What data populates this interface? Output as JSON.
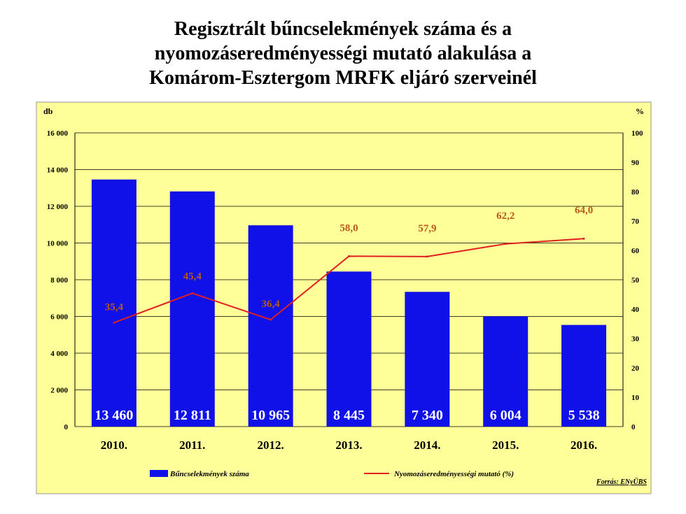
{
  "title_lines": [
    "Regisztrált bűncselekmények száma és a",
    "nyomozáseredményességi mutató alakulása a",
    "Komárom-Esztergom MRFK eljáró szerveinél"
  ],
  "source": "Forrás: ENyÜBS",
  "colors": {
    "plot_bg": "#ffff99",
    "bar": "#1010e8",
    "line": "#e02020",
    "line_label": "#b85a1a",
    "bar_label": "#ffffff",
    "grid": "#000000"
  },
  "chart_data": {
    "type": "bar+line",
    "categories": [
      "2010.",
      "2011.",
      "2012.",
      "2013.",
      "2014.",
      "2015.",
      "2016."
    ],
    "series": [
      {
        "name": "Bűncselekmények száma",
        "type": "bar",
        "axis": "left",
        "values": [
          13460,
          12811,
          10965,
          8445,
          7340,
          6004,
          5538
        ],
        "labels": [
          "13 460",
          "12 811",
          "10 965",
          "8 445",
          "7 340",
          "6 004",
          "5 538"
        ]
      },
      {
        "name": "Nyomozáseredményességi mutató (%)",
        "type": "line",
        "axis": "right",
        "values": [
          35.4,
          45.4,
          36.4,
          58.0,
          57.9,
          62.2,
          64.0
        ],
        "labels": [
          "35,4",
          "45,4",
          "36,4",
          "58,0",
          "57,9",
          "62,2",
          "64,0"
        ]
      }
    ],
    "y_left": {
      "unit": "db",
      "min": 0,
      "max": 16000,
      "ticks": [
        0,
        2000,
        4000,
        6000,
        8000,
        10000,
        12000,
        14000,
        16000
      ],
      "tick_labels": [
        "0",
        "2 000",
        "4 000",
        "6 000",
        "8 000",
        "10 000",
        "12 000",
        "14 000",
        "16 000"
      ]
    },
    "y_right": {
      "unit": "%",
      "min": 0,
      "max": 100,
      "ticks": [
        0,
        10,
        20,
        30,
        40,
        50,
        60,
        70,
        80,
        90,
        100
      ],
      "tick_labels": [
        "0",
        "10",
        "20",
        "30",
        "40",
        "50",
        "60",
        "70",
        "80",
        "90",
        "100"
      ]
    },
    "grid": true,
    "legend": "bottom"
  }
}
